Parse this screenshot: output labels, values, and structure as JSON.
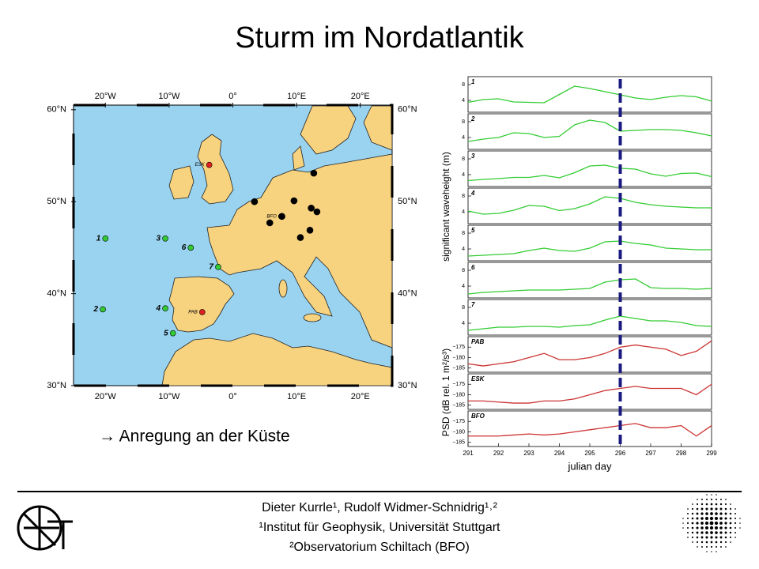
{
  "title": "Sturm im Nordatlantik",
  "map": {
    "lonlim": [
      -25,
      25
    ],
    "latlim": [
      30,
      60.5
    ],
    "lonticks": [
      {
        "value": -20,
        "label": "20°W"
      },
      {
        "value": -10,
        "label": "10°W"
      },
      {
        "value": 0,
        "label": "0°"
      },
      {
        "value": 10,
        "label": "10°E"
      },
      {
        "value": 20,
        "label": "20°E"
      }
    ],
    "latticks": [
      {
        "value": 60,
        "label": "60°N"
      },
      {
        "value": 50,
        "label": "50°N"
      },
      {
        "value": 40,
        "label": "40°N"
      },
      {
        "value": 30,
        "label": "30°N"
      }
    ],
    "stations": [
      {
        "label": "1",
        "lon": -20,
        "lat": 46.0,
        "color": "#33cc33"
      },
      {
        "label": "2",
        "lon": -20.4,
        "lat": 38.3,
        "color": "#33cc33"
      },
      {
        "label": "3",
        "lon": -10.6,
        "lat": 46.0,
        "color": "#33cc33"
      },
      {
        "label": "4",
        "lon": -10.6,
        "lat": 38.4,
        "color": "#33cc33"
      },
      {
        "label": "5",
        "lon": -9.4,
        "lat": 35.7,
        "color": "#33cc33"
      },
      {
        "label": "6",
        "lon": -6.6,
        "lat": 45.0,
        "color": "#33cc33"
      },
      {
        "label": "7",
        "lon": -2.3,
        "lat": 42.9,
        "color": "#33cc33"
      },
      {
        "label": "ESK",
        "lon": -3.7,
        "lat": 54.0,
        "color": "#e02020"
      },
      {
        "label": "BFO",
        "lon": 7.6,
        "lat": 48.4,
        "color": "#e02020"
      },
      {
        "label": "PAB",
        "lon": -4.8,
        "lat": 38.0,
        "color": "#e02020"
      },
      {
        "lon": 12.7,
        "lat": 53.1,
        "color": "#000000"
      },
      {
        "lon": 9.6,
        "lat": 50.1,
        "color": "#000000"
      },
      {
        "lon": 7.7,
        "lat": 48.4,
        "color": "#000000"
      },
      {
        "lon": 12.3,
        "lat": 49.3,
        "color": "#000000"
      },
      {
        "lon": 13.2,
        "lat": 48.9,
        "color": "#000000"
      },
      {
        "lon": 5.8,
        "lat": 47.7,
        "color": "#000000"
      },
      {
        "lon": 12.1,
        "lat": 46.9,
        "color": "#000000"
      },
      {
        "lon": 10.6,
        "lat": 46.1,
        "color": "#000000"
      },
      {
        "lon": 3.4,
        "lat": 50.0,
        "color": "#000000"
      }
    ]
  },
  "chart_data": {
    "type": "line",
    "ylabel": "significant waveheight (m)",
    "ylabel2": "PSD (dB rel. 1 m²/s³)",
    "xlabel": "julian day",
    "x": [
      291,
      291.5,
      292,
      292.5,
      293,
      293.5,
      294,
      294.5,
      295,
      295.5,
      296,
      296.5,
      297,
      297.5,
      298,
      298.5,
      299
    ],
    "xlim": [
      291,
      299
    ],
    "xticks": [
      291,
      292,
      293,
      294,
      295,
      296,
      297,
      298,
      299
    ],
    "marker_x": 296,
    "marker_color": "#1a1a80",
    "panels": [
      {
        "name": "1",
        "color": "#33cc33",
        "ylim": [
          1,
          10
        ],
        "yticks": [
          4,
          8
        ],
        "values": [
          3.5,
          4.2,
          4.4,
          3.6,
          3.5,
          3.4,
          5.5,
          7.6,
          7.0,
          6.2,
          5.4,
          4.6,
          4.2,
          4.8,
          5.2,
          4.9,
          3.8
        ]
      },
      {
        "name": "2",
        "color": "#33cc33",
        "ylim": [
          1,
          10
        ],
        "yticks": [
          4,
          8
        ],
        "values": [
          3.0,
          3.6,
          4.0,
          5.2,
          5.0,
          4.0,
          4.3,
          7.2,
          8.4,
          7.8,
          5.6,
          5.8,
          6.0,
          6.0,
          5.8,
          5.2,
          4.4
        ]
      },
      {
        "name": "3",
        "color": "#33cc33",
        "ylim": [
          1,
          10
        ],
        "yticks": [
          4,
          8
        ],
        "values": [
          2.5,
          2.8,
          3.0,
          3.3,
          3.3,
          3.8,
          3.2,
          4.5,
          6.2,
          6.4,
          5.6,
          5.4,
          4.2,
          3.6,
          4.3,
          4.4,
          3.5
        ]
      },
      {
        "name": "4",
        "color": "#33cc33",
        "ylim": [
          1,
          10
        ],
        "yticks": [
          4,
          8
        ],
        "values": [
          4.2,
          3.4,
          3.6,
          4.4,
          5.6,
          5.4,
          4.3,
          4.8,
          6.0,
          7.8,
          7.4,
          6.4,
          5.8,
          5.4,
          5.2,
          5.0,
          5.0
        ]
      },
      {
        "name": "5",
        "color": "#33cc33",
        "ylim": [
          1,
          10
        ],
        "yticks": [
          4,
          8
        ],
        "values": [
          2.2,
          2.4,
          2.6,
          2.8,
          3.6,
          4.2,
          3.6,
          3.4,
          4.2,
          5.8,
          6.0,
          5.4,
          5.0,
          4.2,
          4.0,
          3.8,
          3.8
        ]
      },
      {
        "name": "6",
        "color": "#33cc33",
        "ylim": [
          1,
          10
        ],
        "yticks": [
          4,
          8
        ],
        "values": [
          2.0,
          2.4,
          2.6,
          2.8,
          3.0,
          3.0,
          3.0,
          3.2,
          3.4,
          5.0,
          5.6,
          5.8,
          3.6,
          3.4,
          3.4,
          3.2,
          3.4
        ]
      },
      {
        "name": "7",
        "color": "#33cc33",
        "ylim": [
          1,
          10
        ],
        "yticks": [
          4,
          8
        ],
        "values": [
          2.2,
          2.6,
          3.0,
          3.0,
          3.2,
          3.2,
          3.0,
          3.4,
          3.6,
          4.8,
          5.8,
          5.2,
          4.6,
          4.6,
          4.2,
          3.4,
          3.2
        ]
      },
      {
        "name": "PAB",
        "color": "#cc3333",
        "ylim": [
          -187,
          -170
        ],
        "yticks": [
          {
            "value": -175,
            "label": "−175"
          },
          {
            "value": -180,
            "label": "−180"
          },
          {
            "value": -185,
            "label": "−185"
          }
        ],
        "values": [
          -183,
          -184,
          -183,
          -182,
          -180,
          -178,
          -181,
          -181,
          -180,
          -178,
          -175,
          -174,
          -175,
          -176,
          -179,
          -177,
          -172
        ]
      },
      {
        "name": "ESK",
        "color": "#cc3333",
        "ylim": [
          -187,
          -170
        ],
        "yticks": [
          {
            "value": -175,
            "label": "−175"
          },
          {
            "value": -180,
            "label": "−180"
          },
          {
            "value": -185,
            "label": "−185"
          }
        ],
        "values": [
          -183,
          -183,
          -183.5,
          -184,
          -184,
          -183,
          -183,
          -182,
          -180,
          -178,
          -177,
          -176,
          -177,
          -177,
          -177,
          -180,
          -175
        ]
      },
      {
        "name": "BFO",
        "color": "#cc3333",
        "ylim": [
          -187,
          -170
        ],
        "yticks": [
          {
            "value": -175,
            "label": "−175"
          },
          {
            "value": -180,
            "label": "−180"
          },
          {
            "value": -185,
            "label": "−185"
          }
        ],
        "values": [
          -182,
          -182,
          -182,
          -181.5,
          -181,
          -181.5,
          -181,
          -180,
          -179,
          -178,
          -177,
          -176,
          -178,
          -178,
          -177,
          -182,
          -177
        ]
      }
    ]
  },
  "annotation": "→ Anregung an der Küste",
  "footer": [
    "Dieter Kurrle¹, Rudolf Widmer-Schnidrig¹˒²",
    "¹Institut für Geophysik, Universität Stuttgart",
    "²Observatorium Schiltach (BFO)"
  ]
}
